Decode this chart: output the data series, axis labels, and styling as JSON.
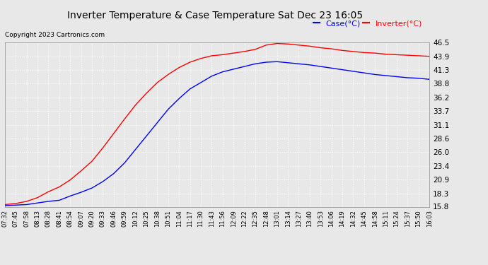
{
  "title": "Inverter Temperature & Case Temperature Sat Dec 23 16:05",
  "copyright": "Copyright 2023 Cartronics.com",
  "legend_labels": [
    "Case(°C)",
    "Inverter(°C)"
  ],
  "legend_colors": [
    "blue",
    "red"
  ],
  "ymin": 15.8,
  "ymax": 46.5,
  "yticks": [
    15.8,
    18.3,
    20.9,
    23.4,
    26.0,
    28.6,
    31.1,
    33.7,
    36.2,
    38.8,
    41.3,
    43.9,
    46.5
  ],
  "background_color": "#e8e8e8",
  "plot_bg_color": "#e8e8e8",
  "grid_color": "#ffffff",
  "case_color": "blue",
  "inverter_color": "red",
  "x_labels": [
    "07:32",
    "07:45",
    "07:58",
    "08:13",
    "08:28",
    "08:41",
    "08:54",
    "09:07",
    "09:20",
    "09:33",
    "09:46",
    "09:59",
    "10:12",
    "10:25",
    "10:38",
    "10:51",
    "11:04",
    "11:17",
    "11:30",
    "11:43",
    "11:56",
    "12:09",
    "12:22",
    "12:35",
    "12:48",
    "13:01",
    "13:14",
    "13:27",
    "13:40",
    "13:53",
    "14:06",
    "14:19",
    "14:32",
    "14:45",
    "14:58",
    "15:11",
    "15:24",
    "15:37",
    "15:50",
    "16:03"
  ],
  "inverter_data": [
    16.2,
    16.4,
    16.8,
    17.5,
    18.6,
    19.5,
    20.8,
    22.5,
    24.3,
    26.8,
    29.5,
    32.2,
    34.8,
    37.0,
    39.0,
    40.5,
    41.8,
    42.8,
    43.5,
    44.0,
    44.2,
    44.5,
    44.8,
    45.2,
    46.0,
    46.3,
    46.2,
    46.0,
    45.8,
    45.5,
    45.3,
    45.0,
    44.8,
    44.6,
    44.5,
    44.3,
    44.2,
    44.1,
    44.0,
    43.9
  ],
  "case_data": [
    16.0,
    16.1,
    16.2,
    16.5,
    16.8,
    17.0,
    17.8,
    18.5,
    19.3,
    20.5,
    22.0,
    24.0,
    26.5,
    29.0,
    31.5,
    34.0,
    36.0,
    37.8,
    39.0,
    40.2,
    41.0,
    41.5,
    42.0,
    42.5,
    42.8,
    42.9,
    42.7,
    42.5,
    42.3,
    42.0,
    41.7,
    41.4,
    41.1,
    40.8,
    40.5,
    40.3,
    40.1,
    39.9,
    39.8,
    39.6
  ]
}
